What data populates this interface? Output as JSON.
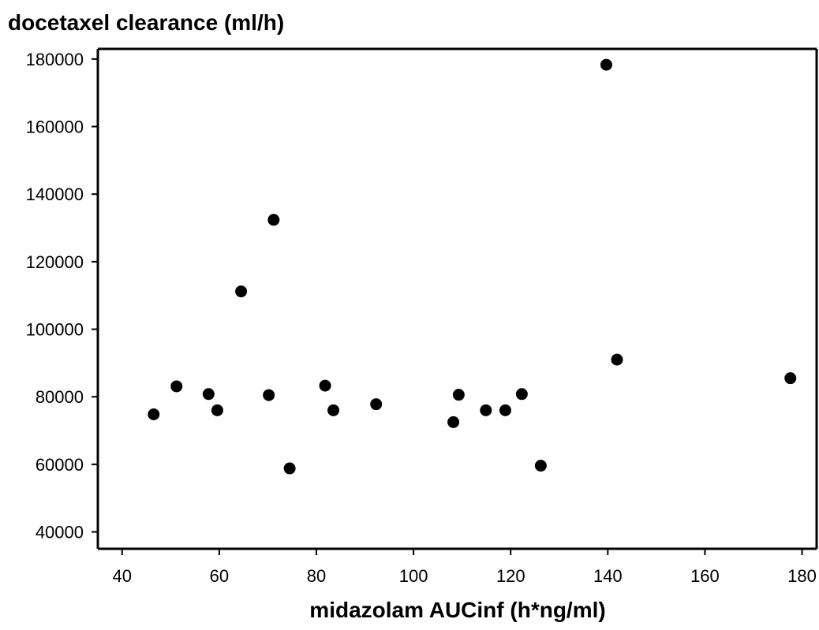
{
  "chart_data": {
    "type": "scatter",
    "title": "",
    "ylabel": "docetaxel clearance (ml/h)",
    "xlabel": "midazolam AUCinf (h*ng/ml)",
    "xlim": [
      35,
      183
    ],
    "ylim": [
      35000,
      183000
    ],
    "xticks": [
      40,
      60,
      80,
      100,
      120,
      140,
      160,
      180
    ],
    "yticks": [
      40000,
      60000,
      80000,
      100000,
      120000,
      140000,
      160000,
      180000
    ],
    "grid": false,
    "legend": "none",
    "marker_color": "#000000",
    "series": [
      {
        "points": [
          {
            "x": 46.5,
            "y": 74800
          },
          {
            "x": 51.2,
            "y": 83100
          },
          {
            "x": 57.8,
            "y": 80800
          },
          {
            "x": 59.6,
            "y": 76000
          },
          {
            "x": 64.5,
            "y": 111200
          },
          {
            "x": 70.2,
            "y": 80500
          },
          {
            "x": 71.2,
            "y": 132400
          },
          {
            "x": 74.5,
            "y": 58800
          },
          {
            "x": 81.8,
            "y": 83300
          },
          {
            "x": 83.5,
            "y": 76000
          },
          {
            "x": 92.3,
            "y": 77800
          },
          {
            "x": 108.2,
            "y": 72500
          },
          {
            "x": 109.3,
            "y": 80600
          },
          {
            "x": 114.9,
            "y": 76000
          },
          {
            "x": 118.9,
            "y": 76000
          },
          {
            "x": 122.3,
            "y": 80800
          },
          {
            "x": 126.2,
            "y": 59600
          },
          {
            "x": 139.7,
            "y": 178300
          },
          {
            "x": 141.9,
            "y": 91000
          },
          {
            "x": 177.6,
            "y": 85500
          }
        ]
      }
    ]
  }
}
